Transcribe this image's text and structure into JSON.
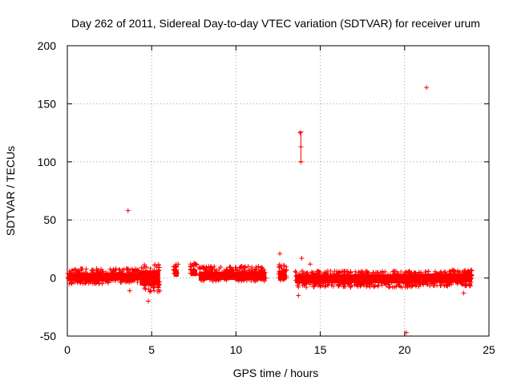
{
  "chart_data": {
    "type": "scatter",
    "title": "Day 262 of 2011, Sidereal Day-to-day VTEC variation (SDTVAR) for receiver urum",
    "xlabel": "GPS time / hours",
    "ylabel": "SDTVAR / TECUs",
    "xlim": [
      0,
      25
    ],
    "ylim": [
      -50,
      200
    ],
    "xticks": [
      "0",
      "5",
      "10",
      "15",
      "20",
      "25"
    ],
    "yticks": [
      "-50",
      "0",
      "50",
      "100",
      "150",
      "200"
    ],
    "grid": true,
    "series_color": "#ff0000",
    "dense_bands": [
      {
        "x_start": 0.0,
        "x_end": 2.6,
        "y_low": -5,
        "y_high": 8
      },
      {
        "x_start": 2.6,
        "x_end": 4.3,
        "y_low": -4,
        "y_high": 8
      },
      {
        "x_start": 4.3,
        "x_end": 5.5,
        "y_low": -12,
        "y_high": 12
      },
      {
        "x_start": 6.3,
        "x_end": 6.6,
        "y_low": 2,
        "y_high": 12
      },
      {
        "x_start": 7.3,
        "x_end": 7.7,
        "y_low": 3,
        "y_high": 13
      },
      {
        "x_start": 7.8,
        "x_end": 11.8,
        "y_low": -3,
        "y_high": 10
      },
      {
        "x_start": 12.5,
        "x_end": 13.0,
        "y_low": -2,
        "y_high": 12
      },
      {
        "x_start": 13.5,
        "x_end": 17.5,
        "y_low": -8,
        "y_high": 6
      },
      {
        "x_start": 17.5,
        "x_end": 21.0,
        "y_low": -8,
        "y_high": 6
      },
      {
        "x_start": 21.0,
        "x_end": 24.0,
        "y_low": -7,
        "y_high": 7
      }
    ],
    "points": [
      {
        "x": 3.6,
        "y": 58
      },
      {
        "x": 3.7,
        "y": -11
      },
      {
        "x": 4.8,
        "y": -20
      },
      {
        "x": 12.6,
        "y": 21
      },
      {
        "x": 13.8,
        "y": 125
      },
      {
        "x": 13.85,
        "y": 113
      },
      {
        "x": 13.85,
        "y": 100
      },
      {
        "x": 13.9,
        "y": 17
      },
      {
        "x": 13.7,
        "y": -15
      },
      {
        "x": 14.4,
        "y": 12
      },
      {
        "x": 21.3,
        "y": 164
      },
      {
        "x": 20.1,
        "y": -47
      },
      {
        "x": 23.5,
        "y": -13
      }
    ],
    "error_bar": {
      "x": 13.85,
      "y": 113,
      "y_low": 100,
      "y_high": 126
    }
  }
}
